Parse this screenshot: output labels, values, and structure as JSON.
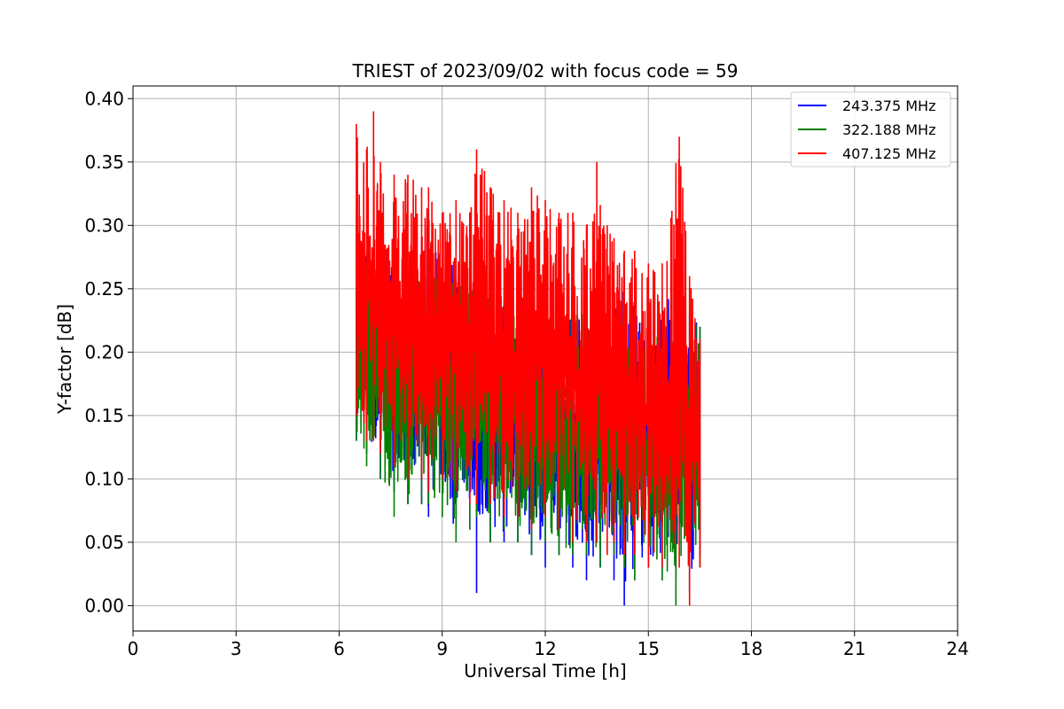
{
  "chart_data": {
    "type": "line",
    "title": "TRIEST of 2023/09/02 with focus code = 59",
    "xlabel": "Universal Time [h]",
    "ylabel": "Y-factor [dB]",
    "xlim": [
      0,
      24
    ],
    "ylim": [
      -0.02,
      0.41
    ],
    "xticks": [
      0,
      3,
      6,
      9,
      12,
      15,
      18,
      21,
      24
    ],
    "xtick_labels": [
      "0",
      "3",
      "6",
      "9",
      "12",
      "15",
      "18",
      "21",
      "24"
    ],
    "yticks": [
      0.0,
      0.05,
      0.1,
      0.15,
      0.2,
      0.25,
      0.3,
      0.35,
      0.4
    ],
    "ytick_labels": [
      "0.00",
      "0.05",
      "0.10",
      "0.15",
      "0.20",
      "0.25",
      "0.30",
      "0.35",
      "0.40"
    ],
    "grid": true,
    "legend_position": "top-right",
    "series": [
      {
        "name": "243.375 MHz",
        "color": "#0000ff",
        "x": [
          6.5,
          6.8,
          7.2,
          7.6,
          8.0,
          8.4,
          8.6,
          9.0,
          9.4,
          9.8,
          10.0,
          10.4,
          10.8,
          11.2,
          11.6,
          12.0,
          12.4,
          12.8,
          13.2,
          13.6,
          14.0,
          14.3,
          14.6,
          15.0,
          15.4,
          15.8,
          16.2,
          16.5
        ],
        "y_high": [
          0.3,
          0.28,
          0.27,
          0.27,
          0.26,
          0.29,
          0.31,
          0.27,
          0.27,
          0.24,
          0.25,
          0.25,
          0.24,
          0.23,
          0.23,
          0.23,
          0.23,
          0.23,
          0.22,
          0.22,
          0.23,
          0.26,
          0.24,
          0.22,
          0.25,
          0.24,
          0.23,
          0.22
        ],
        "y_low": [
          0.13,
          0.12,
          0.1,
          0.09,
          0.08,
          0.08,
          0.07,
          0.07,
          0.06,
          0.06,
          0.01,
          0.05,
          0.05,
          0.05,
          0.04,
          0.03,
          0.04,
          0.03,
          0.02,
          0.03,
          0.02,
          0.0,
          0.02,
          0.03,
          0.02,
          0.02,
          0.01,
          0.04
        ]
      },
      {
        "name": "322.188 MHz",
        "color": "#008000",
        "x": [
          6.5,
          6.8,
          7.2,
          7.6,
          8.0,
          8.4,
          8.6,
          9.0,
          9.4,
          9.8,
          10.0,
          10.4,
          10.8,
          11.2,
          11.6,
          12.0,
          12.4,
          12.8,
          13.2,
          13.6,
          14.0,
          14.3,
          14.6,
          15.0,
          15.4,
          15.8,
          16.2,
          16.5
        ],
        "y_high": [
          0.29,
          0.27,
          0.27,
          0.26,
          0.26,
          0.26,
          0.27,
          0.26,
          0.26,
          0.25,
          0.29,
          0.26,
          0.25,
          0.24,
          0.24,
          0.23,
          0.23,
          0.23,
          0.23,
          0.22,
          0.23,
          0.23,
          0.22,
          0.22,
          0.23,
          0.24,
          0.25,
          0.22
        ],
        "y_low": [
          0.13,
          0.11,
          0.1,
          0.07,
          0.08,
          0.08,
          0.08,
          0.07,
          0.05,
          0.06,
          0.07,
          0.05,
          0.06,
          0.05,
          0.04,
          0.05,
          0.04,
          0.04,
          0.04,
          0.03,
          0.04,
          0.03,
          0.02,
          0.03,
          0.02,
          0.0,
          0.03,
          0.03
        ]
      },
      {
        "name": "407.125 MHz",
        "color": "#ff0000",
        "x": [
          6.5,
          6.8,
          7.0,
          7.2,
          7.6,
          8.0,
          8.4,
          8.6,
          9.0,
          9.4,
          9.8,
          10.0,
          10.4,
          10.8,
          11.2,
          11.6,
          12.0,
          12.4,
          12.8,
          13.2,
          13.5,
          13.8,
          14.0,
          14.3,
          14.6,
          15.0,
          15.4,
          15.9,
          16.2,
          16.5
        ],
        "y_high": [
          0.38,
          0.36,
          0.39,
          0.35,
          0.34,
          0.34,
          0.33,
          0.33,
          0.31,
          0.32,
          0.31,
          0.36,
          0.33,
          0.32,
          0.31,
          0.33,
          0.32,
          0.31,
          0.31,
          0.3,
          0.35,
          0.3,
          0.29,
          0.28,
          0.28,
          0.27,
          0.27,
          0.37,
          0.26,
          0.21
        ],
        "y_low": [
          0.15,
          0.13,
          0.13,
          0.12,
          0.11,
          0.1,
          0.1,
          0.09,
          0.1,
          0.09,
          0.08,
          0.08,
          0.08,
          0.07,
          0.07,
          0.06,
          0.07,
          0.06,
          0.05,
          0.05,
          0.05,
          0.04,
          0.05,
          0.04,
          0.04,
          0.03,
          0.03,
          0.03,
          0.0,
          0.03
        ]
      }
    ]
  }
}
